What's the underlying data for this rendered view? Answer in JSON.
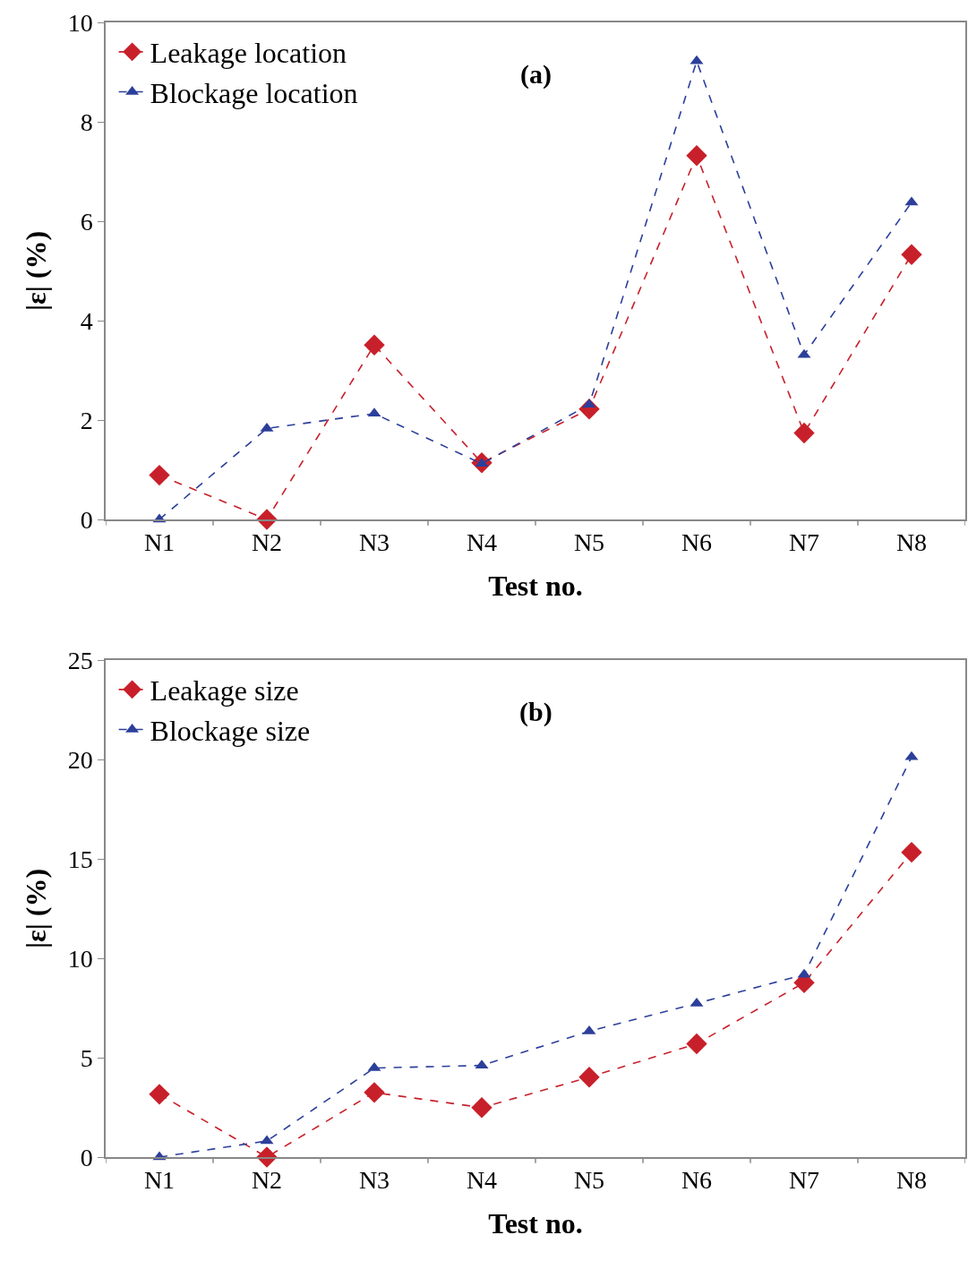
{
  "chart_data": [
    {
      "type": "line",
      "xlabel": "Test no.",
      "ylabel": "|ε| (%)",
      "annotations": [
        "(a)"
      ],
      "categories": [
        "N1",
        "N2",
        "N3",
        "N4",
        "N5",
        "N6",
        "N7",
        "N8"
      ],
      "ylim": [
        0,
        10
      ],
      "yticks": [
        0,
        2,
        4,
        6,
        8,
        10
      ],
      "grid": false,
      "legend": "top left",
      "line_style": "dashed",
      "series": [
        {
          "name": "Leakage location",
          "color": "#c8202a",
          "marker": "diamond",
          "values": [
            0.89,
            0,
            3.51,
            1.14,
            2.22,
            7.32,
            1.74,
            5.33
          ]
        },
        {
          "name": "Blockage location",
          "color": "#2c3f9a",
          "marker": "triangle",
          "values": [
            0,
            1.83,
            2.13,
            1.12,
            2.31,
            9.22,
            3.31,
            6.38
          ]
        }
      ]
    },
    {
      "type": "line",
      "xlabel": "Test no.",
      "ylabel": "|ε| (%)",
      "annotations": [
        "(b)"
      ],
      "categories": [
        "N1",
        "N2",
        "N3",
        "N4",
        "N5",
        "N6",
        "N7",
        "N8"
      ],
      "ylim": [
        0,
        25
      ],
      "yticks": [
        0,
        5,
        10,
        15,
        20,
        25
      ],
      "grid": false,
      "legend": "top left",
      "line_style": "dashed",
      "series": [
        {
          "name": "Leakage size",
          "color": "#c8202a",
          "marker": "diamond",
          "values": [
            3.16,
            0,
            3.25,
            2.49,
            4.02,
            5.7,
            8.77,
            15.33
          ]
        },
        {
          "name": "Blockage size",
          "color": "#2c3f9a",
          "marker": "triangle",
          "values": [
            0,
            0.81,
            4.48,
            4.61,
            6.33,
            7.73,
            9.18,
            20.12
          ]
        }
      ]
    }
  ]
}
